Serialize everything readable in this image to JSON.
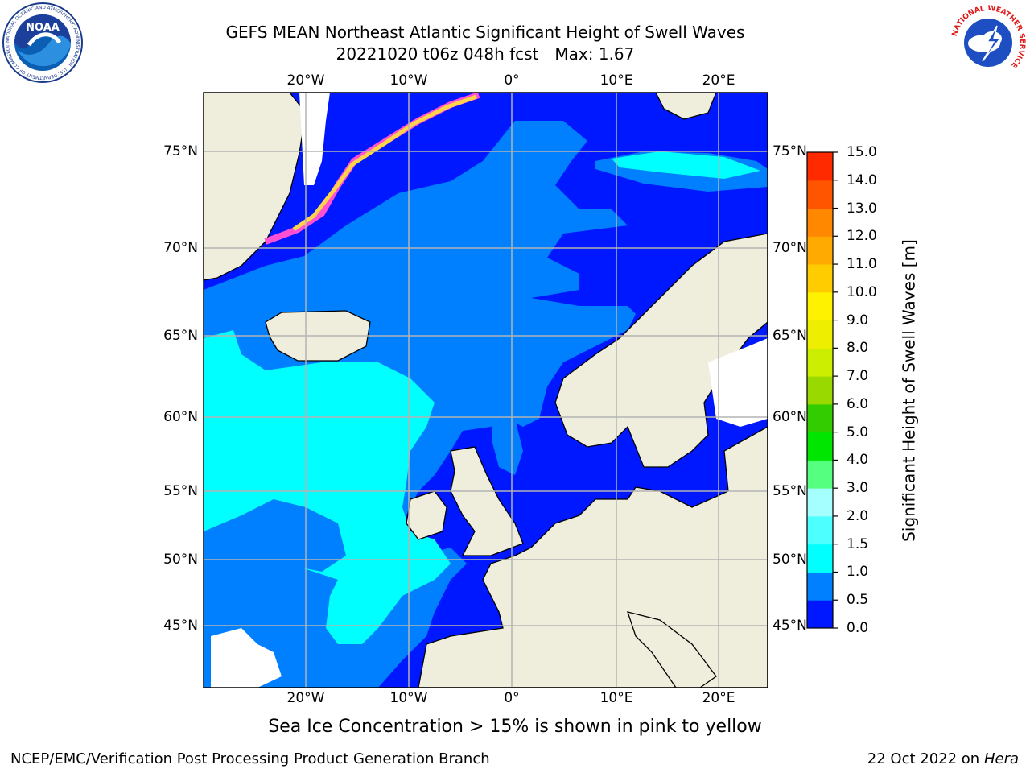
{
  "header": {
    "title_line1": "GEFS MEAN Northeast Atlantic Significant Height of Swell Waves",
    "title_run": "20221020 t06z 048h fcst",
    "title_max": "Max: 1.67"
  },
  "logos": {
    "left": {
      "name": "noaa-logo",
      "text": "NOAA",
      "ring_text": "NATIONAL OCEANIC AND ATMOSPHERIC ADMINISTRATION · U.S. DEPARTMENT OF COMMERCE"
    },
    "right": {
      "name": "nws-logo",
      "ring_text": "NATIONAL WEATHER SERVICE"
    }
  },
  "map": {
    "lon_labels": [
      "20°W",
      "10°W",
      "0°",
      "10°E",
      "20°E"
    ],
    "lat_labels": [
      "75°N",
      "70°N",
      "65°N",
      "60°N",
      "55°N",
      "50°N",
      "45°N"
    ],
    "colors": {
      "land": "#efeddc",
      "ice_pink": "#ff4fd2",
      "ice_yellow": "#ffd34a",
      "grid": "#b3b3b3"
    }
  },
  "colorbar": {
    "label": "Significant Height of Swell Waves [m]",
    "ticks": [
      "0.0",
      "0.5",
      "1.0",
      "1.5",
      "2.0",
      "3.0",
      "4.0",
      "5.0",
      "6.0",
      "7.0",
      "8.0",
      "9.0",
      "10.0",
      "11.0",
      "12.0",
      "13.0",
      "14.0",
      "15.0"
    ],
    "colors": [
      "#0018ff",
      "#0080ff",
      "#00ffff",
      "#4dffff",
      "#a6ffff",
      "#55ff80",
      "#00e600",
      "#33cc00",
      "#99d900",
      "#ccee00",
      "#eeee00",
      "#fff200",
      "#ffcc00",
      "#ffaa00",
      "#ff8800",
      "#ff5500",
      "#ff2a00"
    ]
  },
  "footer": {
    "note": "Sea Ice Concentration > 15% is shown in pink to yellow",
    "credit": "NCEP/EMC/Verification Post Processing Product Generation Branch",
    "date": "22 Oct 2022 on",
    "host": "Hera"
  }
}
